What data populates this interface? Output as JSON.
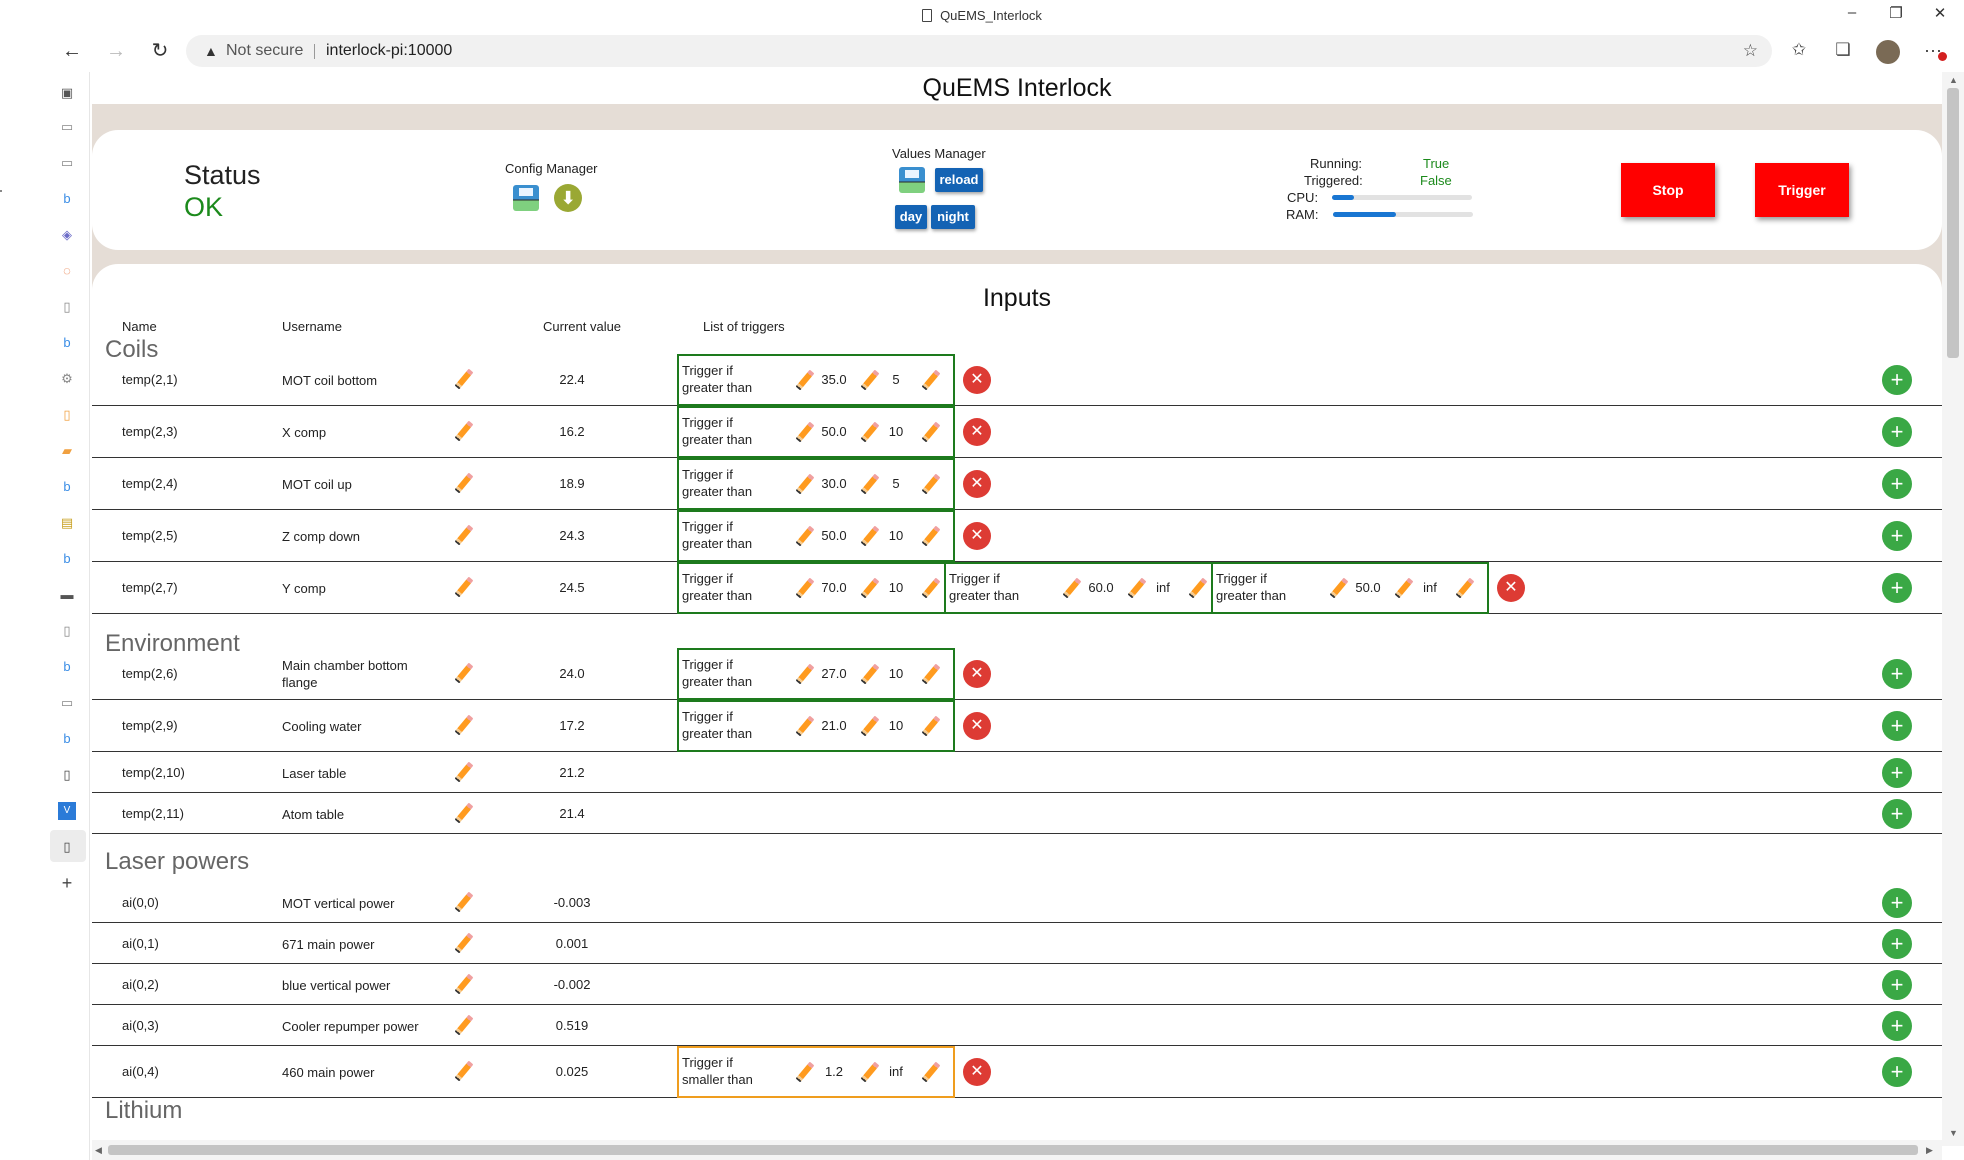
{
  "window": {
    "title": "QuEMS_Interlock",
    "minimize": "–",
    "maximize": "❐",
    "close": "✕"
  },
  "address": {
    "warning": "Not secure",
    "url": "interlock-pi:10000"
  },
  "page": {
    "title": "QuEMS Interlock"
  },
  "status": {
    "label": "Status",
    "value": "OK",
    "config_manager": "Config Manager",
    "values_manager": "Values Manager",
    "reload": "reload",
    "day": "day",
    "night": "night",
    "running_label": "Running:",
    "running_value": "True",
    "triggered_label": "Triggered:",
    "triggered_value": "False",
    "cpu_label": "CPU:",
    "cpu_fraction": 0.16,
    "ram_label": "RAM:",
    "ram_fraction": 0.45,
    "stop": "Stop",
    "trigger": "Trigger"
  },
  "inputs": {
    "title": "Inputs",
    "columns": {
      "name": "Name",
      "username": "Username",
      "current_value": "Current value",
      "triggers": "List of triggers"
    },
    "groups": {
      "coils": "Coils",
      "environment": "Environment",
      "laser_powers": "Laser powers",
      "lithium": "Lithium"
    },
    "rows": {
      "r1": {
        "name": "temp(2,1)",
        "username": "MOT coil bottom",
        "value": "22.4",
        "t1": {
          "text": "Trigger if greater than",
          "threshold": "35.0",
          "delay": "5"
        }
      },
      "r2": {
        "name": "temp(2,3)",
        "username": "X comp",
        "value": "16.2",
        "t1": {
          "text": "Trigger if greater than",
          "threshold": "50.0",
          "delay": "10"
        }
      },
      "r3": {
        "name": "temp(2,4)",
        "username": "MOT coil up",
        "value": "18.9",
        "t1": {
          "text": "Trigger if greater than",
          "threshold": "30.0",
          "delay": "5"
        }
      },
      "r4": {
        "name": "temp(2,5)",
        "username": "Z comp down",
        "value": "24.3",
        "t1": {
          "text": "Trigger if greater than",
          "threshold": "50.0",
          "delay": "10"
        }
      },
      "r5": {
        "name": "temp(2,7)",
        "username": "Y comp",
        "value": "24.5",
        "t1": {
          "text": "Trigger if greater than",
          "threshold": "70.0",
          "delay": "10"
        },
        "t2": {
          "text": "Trigger if greater than",
          "threshold": "60.0",
          "delay": "inf"
        },
        "t3": {
          "text": "Trigger if greater than",
          "threshold": "50.0",
          "delay": "inf"
        }
      },
      "r6": {
        "name": "temp(2,6)",
        "username": "Main chamber bottom flange",
        "value": "24.0",
        "t1": {
          "text": "Trigger if greater than",
          "threshold": "27.0",
          "delay": "10"
        }
      },
      "r7": {
        "name": "temp(2,9)",
        "username": "Cooling water",
        "value": "17.2",
        "t1": {
          "text": "Trigger if greater than",
          "threshold": "21.0",
          "delay": "10"
        }
      },
      "r8": {
        "name": "temp(2,10)",
        "username": "Laser table",
        "value": "21.2"
      },
      "r9": {
        "name": "temp(2,11)",
        "username": "Atom table",
        "value": "21.4"
      },
      "r10": {
        "name": "ai(0,0)",
        "username": "MOT vertical power",
        "value": "-0.003"
      },
      "r11": {
        "name": "ai(0,1)",
        "username": "671 main power",
        "value": "0.001"
      },
      "r12": {
        "name": "ai(0,2)",
        "username": "blue vertical power",
        "value": "-0.002"
      },
      "r13": {
        "name": "ai(0,3)",
        "username": "Cooler repumper power",
        "value": "0.519"
      },
      "r14": {
        "name": "ai(0,4)",
        "username": "460 main power",
        "value": "0.025",
        "t1": {
          "text": "Trigger if smaller than",
          "threshold": "1.2",
          "delay": "inf"
        }
      }
    }
  },
  "colors": {
    "status_ok": "#1c8a1c",
    "trigger_border_greater": "#1d7a1d",
    "trigger_border_smaller": "#ef9d1e",
    "stop_trigger_buttons": "#ff0000",
    "blue_buttons": "#1463b4"
  },
  "icons": [
    "back-icon",
    "forward-icon",
    "refresh-icon",
    "warning-icon",
    "star-icon",
    "favorites-icon",
    "collections-icon",
    "pencil-icon",
    "save-icon",
    "download-icon",
    "close-circle-icon",
    "plus-circle-icon"
  ]
}
